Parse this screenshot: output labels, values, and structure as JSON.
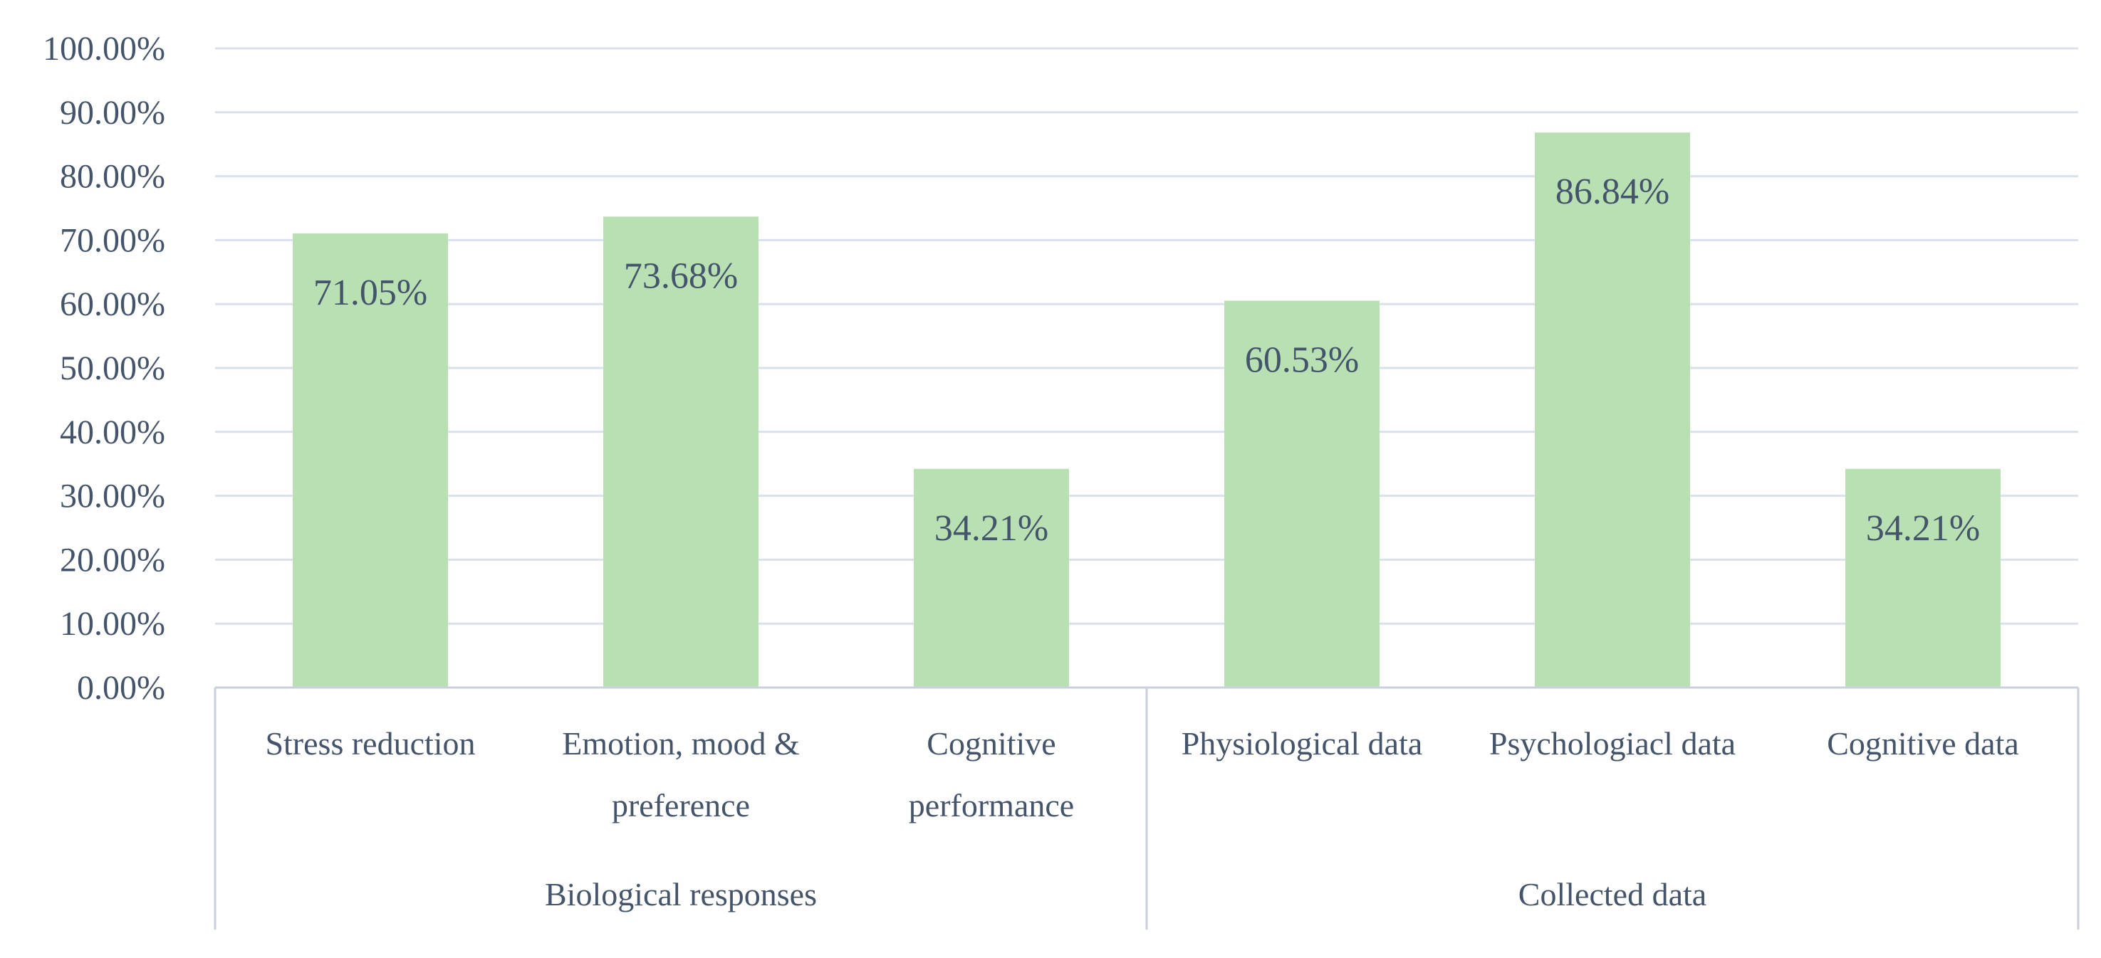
{
  "chart_data": {
    "type": "bar",
    "title": "",
    "xlabel": "",
    "ylabel": "",
    "ylim": [
      0,
      100
    ],
    "y_ticks": [
      "0.00%",
      "10.00%",
      "20.00%",
      "30.00%",
      "40.00%",
      "50.00%",
      "60.00%",
      "70.00%",
      "80.00%",
      "90.00%",
      "100.00%"
    ],
    "grid": true,
    "legend": "none",
    "bar_color": "#b9e0b2",
    "categories": [
      [
        "Stress reduction"
      ],
      [
        "Emotion, mood &",
        "preference"
      ],
      [
        "Cognitive",
        "performance"
      ],
      [
        "Physiological data"
      ],
      [
        "Psychologiacl data"
      ],
      [
        "Cognitive data"
      ]
    ],
    "groups": [
      {
        "label": "Biological responses",
        "count": 3
      },
      {
        "label": "Collected data",
        "count": 3
      }
    ],
    "values": [
      71.05,
      73.68,
      34.21,
      60.53,
      86.84,
      34.21
    ],
    "data_labels": [
      "71.05%",
      "73.68%",
      "34.21%",
      "60.53%",
      "86.84%",
      "34.21%"
    ]
  }
}
